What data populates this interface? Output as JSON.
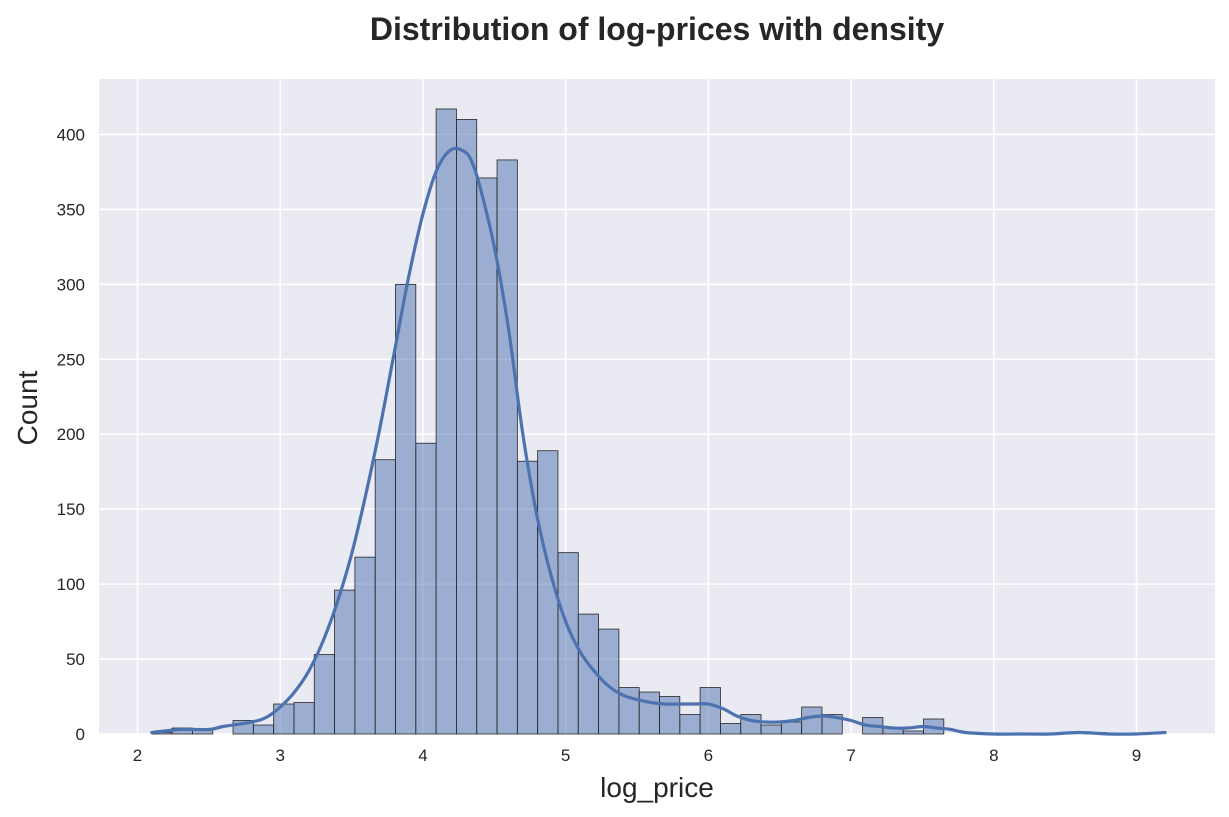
{
  "chart_data": {
    "type": "bar",
    "title": "Distribution of log-prices with density",
    "xlabel": "log_price",
    "ylabel": "Count",
    "xlim": [
      1.73,
      9.55
    ],
    "ylim": [
      0,
      437
    ],
    "xticks": [
      2,
      3,
      4,
      5,
      6,
      7,
      8,
      9
    ],
    "yticks": [
      0,
      50,
      100,
      150,
      200,
      250,
      300,
      350,
      400
    ],
    "grid": true,
    "background": "#eaeaf2",
    "bar_color": "#4c72b0",
    "kde_color": "#4c72b0",
    "bins": {
      "start": 2.1,
      "width": 0.1423,
      "counts": [
        1,
        4,
        3,
        0,
        9,
        6,
        20,
        21,
        53,
        96,
        118,
        183,
        300,
        194,
        417,
        410,
        371,
        383,
        182,
        189,
        121,
        80,
        70,
        31,
        28,
        25,
        13,
        31,
        7,
        13,
        6,
        8,
        18,
        13,
        0,
        11,
        4,
        2,
        10,
        0,
        0,
        0,
        0,
        0,
        0,
        0,
        1,
        0,
        0,
        0
      ]
    },
    "kde": {
      "x": [
        2.1,
        2.3,
        2.5,
        2.6,
        2.8,
        2.9,
        3.0,
        3.1,
        3.2,
        3.3,
        3.4,
        3.5,
        3.6,
        3.7,
        3.8,
        3.9,
        4.0,
        4.1,
        4.2,
        4.3,
        4.35,
        4.4,
        4.5,
        4.6,
        4.7,
        4.8,
        4.9,
        5.0,
        5.1,
        5.2,
        5.3,
        5.4,
        5.5,
        5.6,
        5.7,
        5.8,
        5.9,
        6.0,
        6.1,
        6.2,
        6.3,
        6.4,
        6.5,
        6.6,
        6.7,
        6.8,
        6.9,
        7.0,
        7.1,
        7.2,
        7.3,
        7.4,
        7.5,
        7.6,
        7.7,
        7.8,
        8.0,
        8.2,
        8.4,
        8.6,
        8.8,
        9.0,
        9.2
      ],
      "y": [
        1,
        3,
        3,
        5,
        8,
        11,
        18,
        28,
        42,
        62,
        88,
        120,
        160,
        205,
        255,
        305,
        347,
        377,
        390,
        388,
        380,
        365,
        325,
        270,
        200,
        145,
        105,
        75,
        55,
        42,
        32,
        26,
        23,
        21,
        20,
        20,
        20,
        20,
        17,
        12,
        9,
        8,
        8,
        9,
        11,
        12,
        11,
        9,
        6,
        5,
        4,
        4,
        5,
        4,
        3,
        1,
        0,
        0,
        0,
        1,
        0,
        0,
        1
      ]
    }
  }
}
